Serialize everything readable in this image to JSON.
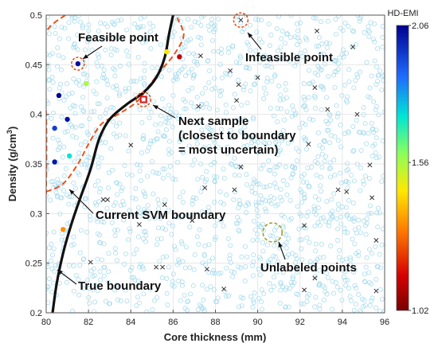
{
  "chart_data": {
    "type": "scatter",
    "title": "",
    "xlabel": "Core thickness (mm)",
    "ylabel": "Density (g/cm",
    "ylabel_sup": "3",
    "ylabel_close": ")",
    "xlim": [
      80,
      96
    ],
    "ylim": [
      0.2,
      0.5
    ],
    "x_ticks": [
      80,
      82,
      84,
      86,
      88,
      90,
      92,
      94,
      96
    ],
    "y_ticks": [
      0.2,
      0.25,
      0.3,
      0.35,
      0.4,
      0.45,
      0.5
    ],
    "grid": true,
    "colorbar": {
      "label": "HD-EMI",
      "ticks": [
        2.06,
        1.56,
        1.02
      ],
      "range": [
        1.02,
        2.06
      ]
    },
    "series": [
      {
        "kind": "feasible",
        "points": [
          {
            "x": 80.6,
            "y": 0.419,
            "c": 2.06
          },
          {
            "x": 81.5,
            "y": 0.451,
            "c": 2.04
          },
          {
            "x": 80.4,
            "y": 0.386,
            "c": 1.95
          },
          {
            "x": 80.4,
            "y": 0.352,
            "c": 2.02
          },
          {
            "x": 81.0,
            "y": 0.395,
            "c": 2.03
          },
          {
            "x": 81.1,
            "y": 0.358,
            "c": 1.72
          },
          {
            "x": 81.9,
            "y": 0.431,
            "c": 1.55
          },
          {
            "x": 85.7,
            "y": 0.463,
            "c": 1.45
          },
          {
            "x": 80.8,
            "y": 0.284,
            "c": 1.34
          },
          {
            "x": 86.3,
            "y": 0.458,
            "c": 1.12
          }
        ]
      },
      {
        "kind": "infeasible",
        "points": [
          {
            "x": 89.2,
            "y": 0.495
          },
          {
            "x": 92.8,
            "y": 0.484
          },
          {
            "x": 94.5,
            "y": 0.468
          },
          {
            "x": 87.3,
            "y": 0.459
          },
          {
            "x": 88.7,
            "y": 0.444
          },
          {
            "x": 90.0,
            "y": 0.437
          },
          {
            "x": 89.1,
            "y": 0.43
          },
          {
            "x": 92.7,
            "y": 0.427
          },
          {
            "x": 89.0,
            "y": 0.414
          },
          {
            "x": 87.2,
            "y": 0.408
          },
          {
            "x": 93.3,
            "y": 0.405
          },
          {
            "x": 94.7,
            "y": 0.4
          },
          {
            "x": 84.0,
            "y": 0.369
          },
          {
            "x": 92.4,
            "y": 0.37
          },
          {
            "x": 89.2,
            "y": 0.347
          },
          {
            "x": 95.3,
            "y": 0.349
          },
          {
            "x": 82.7,
            "y": 0.314
          },
          {
            "x": 82.9,
            "y": 0.314
          },
          {
            "x": 85.6,
            "y": 0.309
          },
          {
            "x": 87.5,
            "y": 0.326
          },
          {
            "x": 88.9,
            "y": 0.324
          },
          {
            "x": 93.8,
            "y": 0.324
          },
          {
            "x": 94.2,
            "y": 0.322
          },
          {
            "x": 95.4,
            "y": 0.316
          },
          {
            "x": 84.4,
            "y": 0.289
          },
          {
            "x": 86.9,
            "y": 0.293
          },
          {
            "x": 92.2,
            "y": 0.288
          },
          {
            "x": 95.6,
            "y": 0.273
          },
          {
            "x": 82.1,
            "y": 0.251
          },
          {
            "x": 85.2,
            "y": 0.246
          },
          {
            "x": 85.5,
            "y": 0.246
          },
          {
            "x": 87.6,
            "y": 0.244
          },
          {
            "x": 92.7,
            "y": 0.235
          },
          {
            "x": 88.4,
            "y": 0.224
          },
          {
            "x": 92.2,
            "y": 0.223
          },
          {
            "x": 95.6,
            "y": 0.222
          }
        ]
      }
    ],
    "true_boundary": [
      [
        80.3,
        0.2
      ],
      [
        80.5,
        0.23
      ],
      [
        80.8,
        0.26
      ],
      [
        81.2,
        0.29
      ],
      [
        81.6,
        0.315
      ],
      [
        82.1,
        0.345
      ],
      [
        82.5,
        0.375
      ],
      [
        83.0,
        0.395
      ],
      [
        83.8,
        0.41
      ],
      [
        84.6,
        0.422
      ],
      [
        85.2,
        0.437
      ],
      [
        85.6,
        0.457
      ],
      [
        85.8,
        0.48
      ],
      [
        86.0,
        0.5
      ]
    ],
    "svm_boundary": [
      [
        80.9,
        0.5
      ],
      [
        80.0,
        0.483
      ],
      [
        79.8,
        0.45
      ],
      [
        80.0,
        0.4
      ],
      [
        80.0,
        0.32
      ]
    ],
    "svm_boundary_right": [
      [
        80.0,
        0.322
      ],
      [
        80.8,
        0.33
      ],
      [
        81.5,
        0.35
      ],
      [
        82.0,
        0.37
      ],
      [
        82.6,
        0.39
      ],
      [
        83.4,
        0.4
      ],
      [
        84.3,
        0.413
      ],
      [
        84.9,
        0.43
      ],
      [
        85.5,
        0.446
      ],
      [
        86.1,
        0.462
      ],
      [
        86.5,
        0.48
      ],
      [
        86.2,
        0.497
      ]
    ],
    "highlight": {
      "next_sample": {
        "x": 84.6,
        "y": 0.415
      },
      "feasible_example": {
        "x": 81.5,
        "y": 0.451
      },
      "infeasible_example": {
        "x": 89.2,
        "y": 0.495
      },
      "unlabeled_example": {
        "x": 90.7,
        "y": 0.281
      }
    },
    "annotations": [
      {
        "id": "feasible",
        "text": "Feasible point"
      },
      {
        "id": "infeasible",
        "text": "Infeasible point"
      },
      {
        "id": "next",
        "lines": [
          "Next sample",
          "(closest to boundary",
          "= most uncertain)"
        ]
      },
      {
        "id": "svm",
        "text": "Current SVM boundary"
      },
      {
        "id": "unlabeled",
        "text": "Unlabeled points"
      },
      {
        "id": "true",
        "text": "True boundary"
      }
    ]
  }
}
